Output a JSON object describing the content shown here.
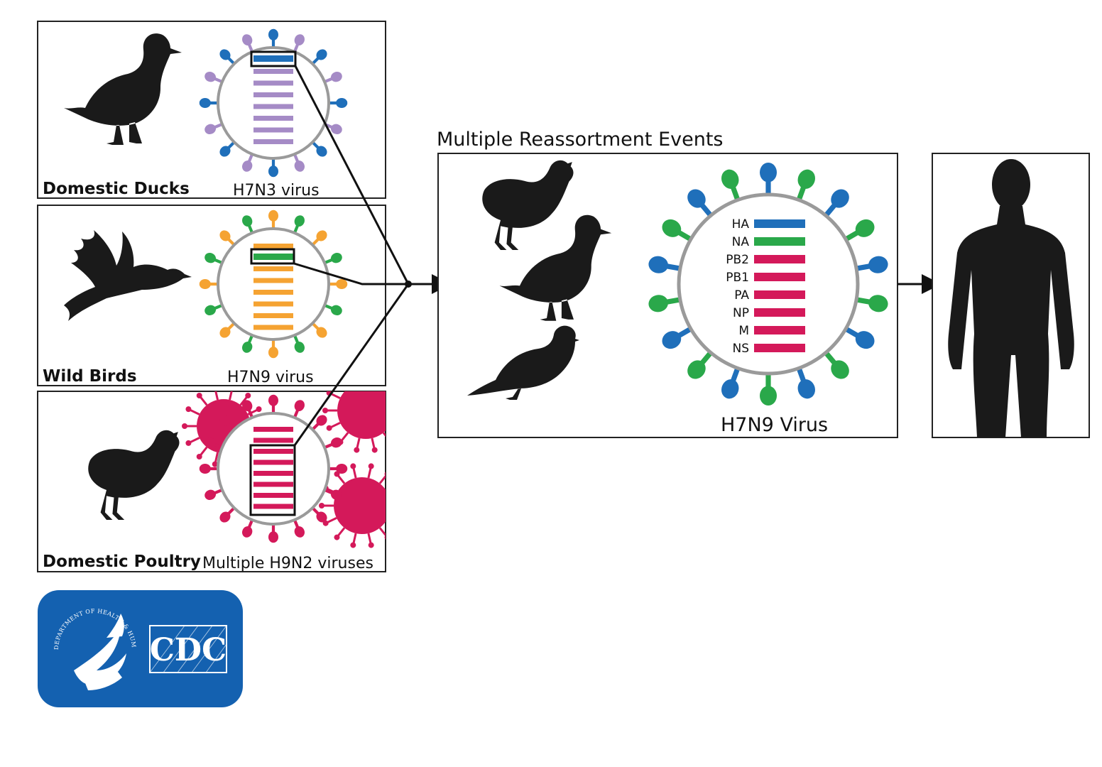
{
  "panels": {
    "ducks": {
      "host_label": "Domestic Ducks",
      "virus_label": "H7N3 virus",
      "spike_colors": [
        "#1f6fba",
        "#a58bc6"
      ],
      "segment_color": "#a58bc6",
      "highlight_color": "#1f6fba"
    },
    "wild": {
      "host_label": "Wild Birds",
      "virus_label": "H7N9 virus",
      "spike_colors": [
        "#f5a332",
        "#2aa84a"
      ],
      "segment_color": "#f5a332",
      "highlight_color": "#2aa84a"
    },
    "poultry": {
      "host_label": "Domestic Poultry",
      "virus_label": "Multiple H9N2 viruses",
      "spike_colors": [
        "#d4195a",
        "#d4195a"
      ],
      "segment_color": "#d4195a",
      "highlight_color": "#d4195a"
    }
  },
  "reassortment": {
    "title": "Multiple Reassortment Events",
    "virus_label": "H7N9 Virus",
    "segments": [
      {
        "name": "HA",
        "color": "#1f6fba"
      },
      {
        "name": "NA",
        "color": "#2aa84a"
      },
      {
        "name": "PB2",
        "color": "#d4195a"
      },
      {
        "name": "PB1",
        "color": "#d4195a"
      },
      {
        "name": "PA",
        "color": "#d4195a"
      },
      {
        "name": "NP",
        "color": "#d4195a"
      },
      {
        "name": "M",
        "color": "#d4195a"
      },
      {
        "name": "NS",
        "color": "#d4195a"
      }
    ]
  },
  "logo": {
    "agency": "CDC",
    "seal_text": "DEPARTMENT OF HEALTH & HUMAN SERVICES · USA",
    "background": "#1461b0"
  }
}
